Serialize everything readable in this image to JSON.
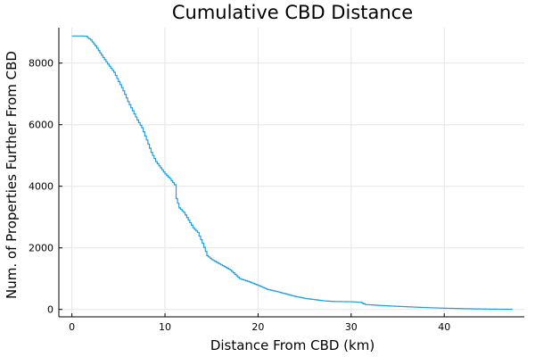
{
  "chart_data": {
    "type": "line",
    "title": "Cumulative CBD Distance",
    "xlabel": "Distance From CBD (km)",
    "ylabel": "Num. of Properties Further From CBD",
    "xlim": [
      -1.4,
      48.6
    ],
    "ylim": [
      -240,
      9150
    ],
    "xticks": [
      0,
      10,
      20,
      30,
      40
    ],
    "yticks": [
      0,
      2000,
      4000,
      6000,
      8000
    ],
    "grid": true,
    "legend": "none",
    "color": "#1f9fe0",
    "series": [
      {
        "x": [
          0.0,
          0.5,
          1.0,
          1.5,
          2.0,
          2.5,
          3.0,
          3.5,
          4.0,
          4.5,
          5.0,
          5.5,
          6.0,
          6.5,
          7.0,
          7.5,
          8.0,
          8.5,
          9.0,
          9.5,
          10.0,
          10.5,
          11.0,
          11.2,
          11.5,
          12.0,
          12.5,
          13.0,
          13.5,
          14.0,
          14.5,
          15.0,
          16.0,
          17.0,
          18.0,
          19.0,
          20.0,
          21.0,
          22.0,
          23.0,
          24.0,
          25.0,
          26.0,
          27.0,
          28.0,
          30.0,
          31.0,
          31.5,
          33.0,
          35.0,
          38.0,
          40.0,
          43.0,
          45.0,
          47.3
        ],
        "y": [
          8880,
          8880,
          8880,
          8870,
          8750,
          8560,
          8330,
          8110,
          7900,
          7700,
          7400,
          7100,
          6750,
          6450,
          6150,
          5900,
          5500,
          5100,
          4800,
          4600,
          4400,
          4250,
          4050,
          3600,
          3300,
          3150,
          2900,
          2650,
          2500,
          2150,
          1750,
          1620,
          1450,
          1280,
          1000,
          900,
          780,
          650,
          580,
          500,
          420,
          360,
          320,
          280,
          260,
          250,
          230,
          160,
          130,
          100,
          60,
          40,
          20,
          10,
          5
        ]
      }
    ]
  }
}
